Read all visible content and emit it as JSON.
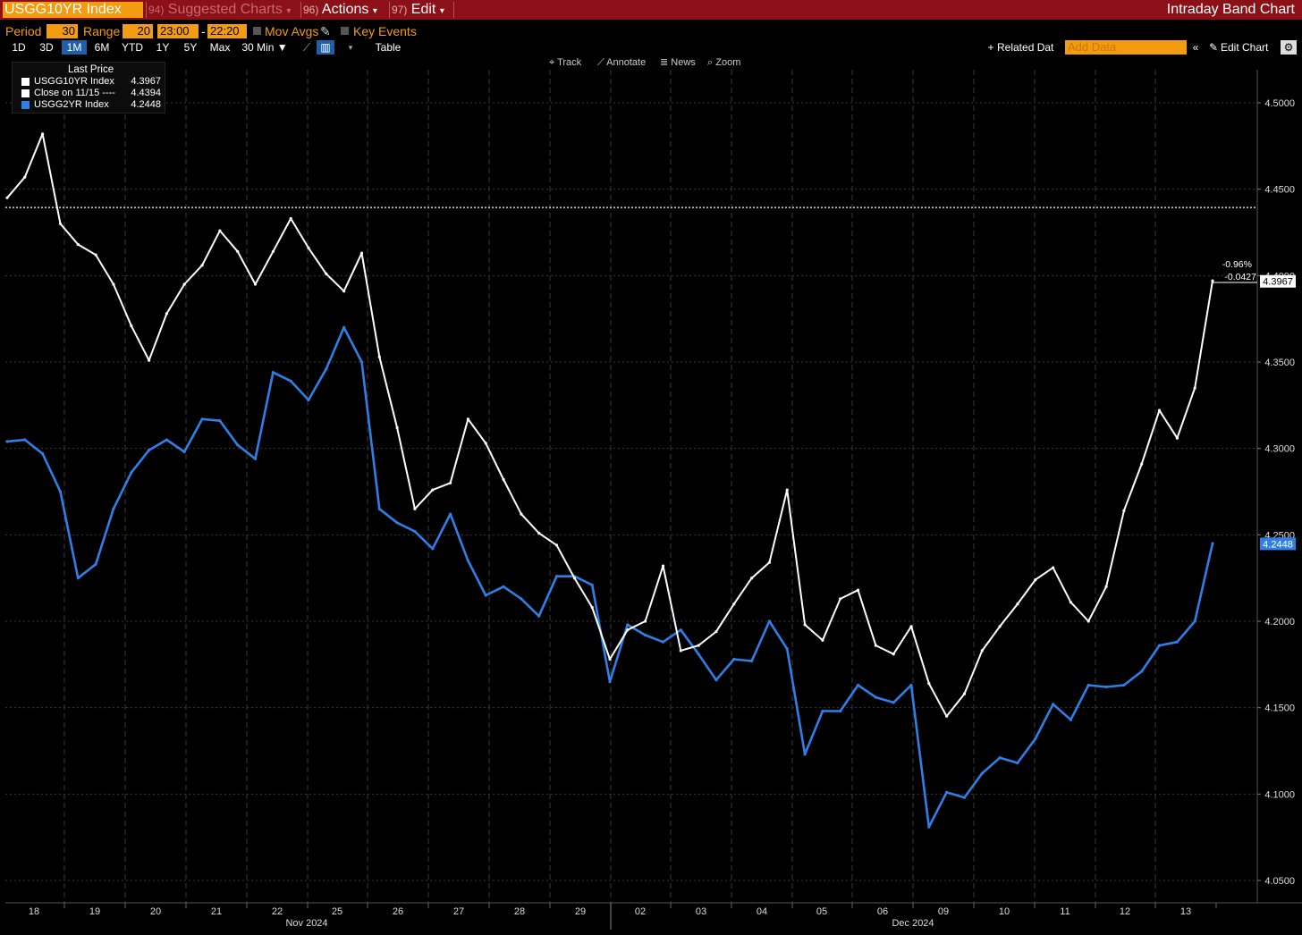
{
  "toolbar": {
    "ticker": "USGG10YR Index",
    "suggested_num": "94)",
    "suggested_label": "Suggested Charts",
    "actions_num": "96)",
    "actions_label": "Actions",
    "edit_num": "97)",
    "edit_label": "Edit",
    "chart_title": "Intraday Band Chart"
  },
  "settings": {
    "period_label": "Period",
    "period_value": "30",
    "range_label": "Range",
    "range_value": "20",
    "time_start": "23:00",
    "time_dash": "-",
    "time_end": "22:20",
    "mov_avgs": "Mov Avgs",
    "key_events": "Key Events"
  },
  "ranges": [
    "1D",
    "3D",
    "1M",
    "6M",
    "YTD",
    "1Y",
    "5Y",
    "Max"
  ],
  "selected_range": "1M",
  "interval": "30 Min ▼",
  "table_label": "Table",
  "related_data": "Related Dat",
  "add_data_placeholder": "Add Data",
  "edit_chart": "Edit Chart",
  "chart_tools": [
    "Track",
    "Annotate",
    "News",
    "Zoom"
  ],
  "legend": {
    "header": "Last Price",
    "rows": [
      {
        "name": "USGG10YR Index",
        "value": "4.3967",
        "color": "#ffffff"
      },
      {
        "name": "Close on 11/15 ----",
        "value": "4.4394",
        "color": "#ffffff"
      },
      {
        "name": "USGG2YR Index",
        "value": "4.2448",
        "color": "#2f7fe6"
      }
    ]
  },
  "annotations": {
    "pct_change": "-0.96%",
    "abs_change": "-0.0427",
    "last_10y": "4.3967",
    "last_2y": "4.2448"
  },
  "colors": {
    "bg": "#000000",
    "series_10y": "#ffffff",
    "series_2y": "#2f7fe6",
    "accent": "#f39c12",
    "header": "#8b1017"
  },
  "chart_data": {
    "type": "line",
    "y_ticks": [
      "4.5000",
      "4.4500",
      "4.4000",
      "4.3500",
      "4.3000",
      "4.2500",
      "4.2000",
      "4.1500",
      "4.1000",
      "4.0500"
    ],
    "ylim": [
      4.04,
      4.51
    ],
    "x_ticks": [
      "18",
      "19",
      "20",
      "21",
      "22",
      "25",
      "26",
      "27",
      "28",
      "29",
      "02",
      "03",
      "04",
      "05",
      "06",
      "09",
      "10",
      "11",
      "12",
      "13"
    ],
    "x_period_labels": [
      "Nov 2024",
      "Dec 2024"
    ],
    "reference_line": {
      "label": "Close on 11/15",
      "value": 4.4394
    },
    "grid": true,
    "series": [
      {
        "name": "USGG10YR Index",
        "color": "#ffffff",
        "x": [
          17.5,
          17.9,
          18.0,
          18.3,
          18.5,
          18.8,
          19.0,
          19.3,
          19.5,
          19.8,
          20.0,
          20.3,
          20.5,
          20.8,
          21.0,
          21.3,
          21.5,
          21.8,
          22.0,
          22.3,
          22.5,
          25.0,
          25.3,
          25.5,
          25.8,
          26.0,
          26.3,
          26.5,
          26.8,
          27.0,
          27.3,
          29.0,
          29.3,
          29.5,
          29.8,
          30.0,
          30.3,
          30.5,
          30.8,
          31.0,
          31.3,
          31.6,
          32.0,
          32.3,
          32.6,
          33.0,
          33.3,
          33.6,
          34.0,
          34.3,
          34.6,
          35.0,
          35.3,
          35.6,
          36.0,
          36.3,
          36.6,
          37.0,
          37.3,
          37.6,
          38.0,
          38.3,
          38.6,
          39.0,
          39.3,
          39.6,
          40.0,
          40.3,
          40.6
        ],
        "values": [
          4.445,
          4.457,
          4.482,
          4.43,
          4.418,
          4.412,
          4.395,
          4.371,
          4.351,
          4.378,
          4.395,
          4.406,
          4.426,
          4.414,
          4.395,
          4.414,
          4.433,
          4.416,
          4.401,
          4.391,
          4.413,
          4.353,
          4.312,
          4.265,
          4.276,
          4.28,
          4.317,
          4.303,
          4.282,
          4.262,
          4.251,
          4.244,
          4.225,
          4.208,
          4.178,
          4.195,
          4.2,
          4.232,
          4.183,
          4.186,
          4.194,
          4.21,
          4.225,
          4.234,
          4.276,
          4.198,
          4.189,
          4.213,
          4.218,
          4.186,
          4.181,
          4.197,
          4.164,
          4.145,
          4.158,
          4.183,
          4.197,
          4.21,
          4.224,
          4.231,
          4.211,
          4.2,
          4.22,
          4.264,
          4.291,
          4.322,
          4.306,
          4.335,
          4.397
        ]
      },
      {
        "name": "USGG2YR Index",
        "color": "#2f7fe6",
        "x": [
          17.5,
          17.9,
          18.0,
          18.3,
          18.5,
          18.8,
          19.0,
          19.3,
          19.5,
          19.8,
          20.0,
          20.3,
          20.5,
          20.8,
          21.0,
          21.3,
          21.5,
          21.8,
          22.0,
          22.3,
          22.5,
          25.0,
          25.3,
          25.5,
          25.8,
          26.0,
          26.3,
          26.5,
          26.8,
          27.0,
          27.3,
          29.0,
          29.3,
          29.5,
          29.8,
          30.0,
          30.3,
          30.5,
          30.8,
          31.0,
          31.3,
          31.6,
          32.0,
          32.3,
          32.6,
          33.0,
          33.3,
          33.6,
          34.0,
          34.3,
          34.6,
          35.0,
          35.3,
          35.6,
          36.0,
          36.3,
          36.6,
          37.0,
          37.3,
          37.6,
          38.0,
          38.3,
          38.6,
          39.0,
          39.3,
          39.6,
          40.0,
          40.3,
          40.6
        ],
        "values": [
          4.304,
          4.305,
          4.297,
          4.275,
          4.225,
          4.233,
          4.265,
          4.286,
          4.299,
          4.305,
          4.298,
          4.317,
          4.316,
          4.302,
          4.294,
          4.344,
          4.339,
          4.328,
          4.346,
          4.37,
          4.35,
          4.265,
          4.257,
          4.252,
          4.242,
          4.262,
          4.235,
          4.215,
          4.22,
          4.213,
          4.203,
          4.226,
          4.226,
          4.221,
          4.165,
          4.198,
          4.192,
          4.188,
          4.195,
          4.181,
          4.166,
          4.178,
          4.177,
          4.2,
          4.184,
          4.123,
          4.148,
          4.148,
          4.163,
          4.156,
          4.153,
          4.163,
          4.081,
          4.101,
          4.098,
          4.112,
          4.121,
          4.118,
          4.132,
          4.152,
          4.143,
          4.163,
          4.162,
          4.163,
          4.171,
          4.186,
          4.188,
          4.2,
          4.245
        ]
      }
    ]
  }
}
